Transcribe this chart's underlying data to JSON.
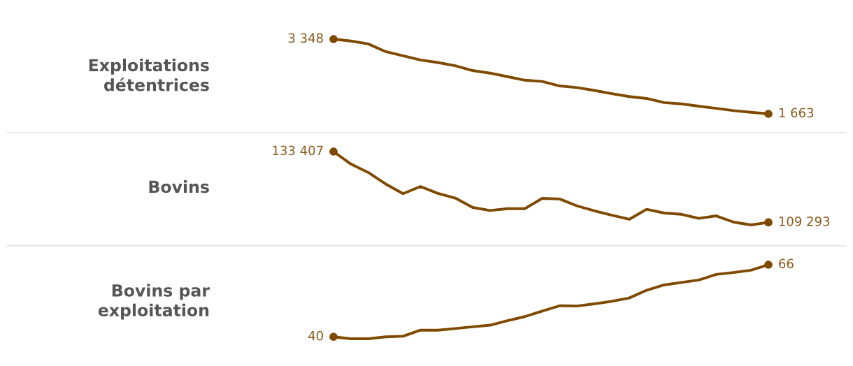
{
  "chart_data": [
    {
      "type": "line",
      "ylabel": "Exploitations\ndétentrices",
      "categories": [
        null,
        null,
        null,
        null,
        null,
        null,
        null,
        null,
        null,
        null,
        null,
        null,
        null,
        null,
        null,
        null,
        null,
        null,
        null,
        null,
        null,
        null,
        null,
        null,
        null,
        null
      ],
      "series": [
        {
          "color": "#7f4a00",
          "values": [
            3348,
            3305,
            3240,
            3066,
            2972,
            2878,
            2820,
            2748,
            2639,
            2581,
            2502,
            2422,
            2393,
            2292,
            2256,
            2191,
            2119,
            2053,
            2010,
            1916,
            1887,
            1837,
            1786,
            1735,
            1699,
            1663
          ],
          "value_labels": [
            "3 348",
            null,
            null,
            null,
            null,
            null,
            null,
            null,
            null,
            null,
            null,
            null,
            null,
            null,
            null,
            null,
            null,
            null,
            null,
            null,
            null,
            null,
            null,
            null,
            null,
            "1 663"
          ]
        }
      ]
    },
    {
      "type": "line",
      "ylabel": "Bovins",
      "categories": [
        null,
        null,
        null,
        null,
        null,
        null,
        null,
        null,
        null,
        null,
        null,
        null,
        null,
        null,
        null,
        null,
        null,
        null,
        null,
        null,
        null,
        null,
        null,
        null,
        null,
        null
      ],
      "series": [
        {
          "color": "#7f4a00",
          "values": [
            133407,
            129160,
            126290,
            122360,
            119070,
            121510,
            119170,
            117580,
            114390,
            113330,
            113970,
            113970,
            117470,
            117260,
            114920,
            113220,
            111740,
            110350,
            113760,
            112480,
            112060,
            110670,
            111520,
            109400,
            108440,
            109293
          ],
          "value_labels": [
            "133 407",
            null,
            null,
            null,
            null,
            null,
            null,
            null,
            null,
            null,
            null,
            null,
            null,
            null,
            null,
            null,
            null,
            null,
            null,
            null,
            null,
            null,
            null,
            null,
            null,
            "109 293"
          ]
        }
      ]
    },
    {
      "type": "line",
      "ylabel": "Bovins par\nexploitation",
      "categories": [
        null,
        null,
        null,
        null,
        null,
        null,
        null,
        null,
        null,
        null,
        null,
        null,
        null,
        null,
        null,
        null,
        null,
        null,
        null,
        null,
        null,
        null,
        null,
        null,
        null,
        null
      ],
      "series": [
        {
          "color": "#7f4a00",
          "values": [
            40,
            39.3,
            39.3,
            40,
            40.2,
            42.4,
            42.4,
            43.0,
            43.6,
            44.2,
            45.8,
            47.3,
            49.3,
            51.2,
            51.1,
            51.9,
            52.8,
            54.0,
            56.8,
            58.7,
            59.6,
            60.5,
            62.5,
            63.2,
            64.0,
            66
          ],
          "value_labels": [
            "40",
            null,
            null,
            null,
            null,
            null,
            null,
            null,
            null,
            null,
            null,
            null,
            null,
            null,
            null,
            null,
            null,
            null,
            null,
            null,
            null,
            null,
            null,
            null,
            null,
            "66"
          ]
        }
      ]
    }
  ]
}
